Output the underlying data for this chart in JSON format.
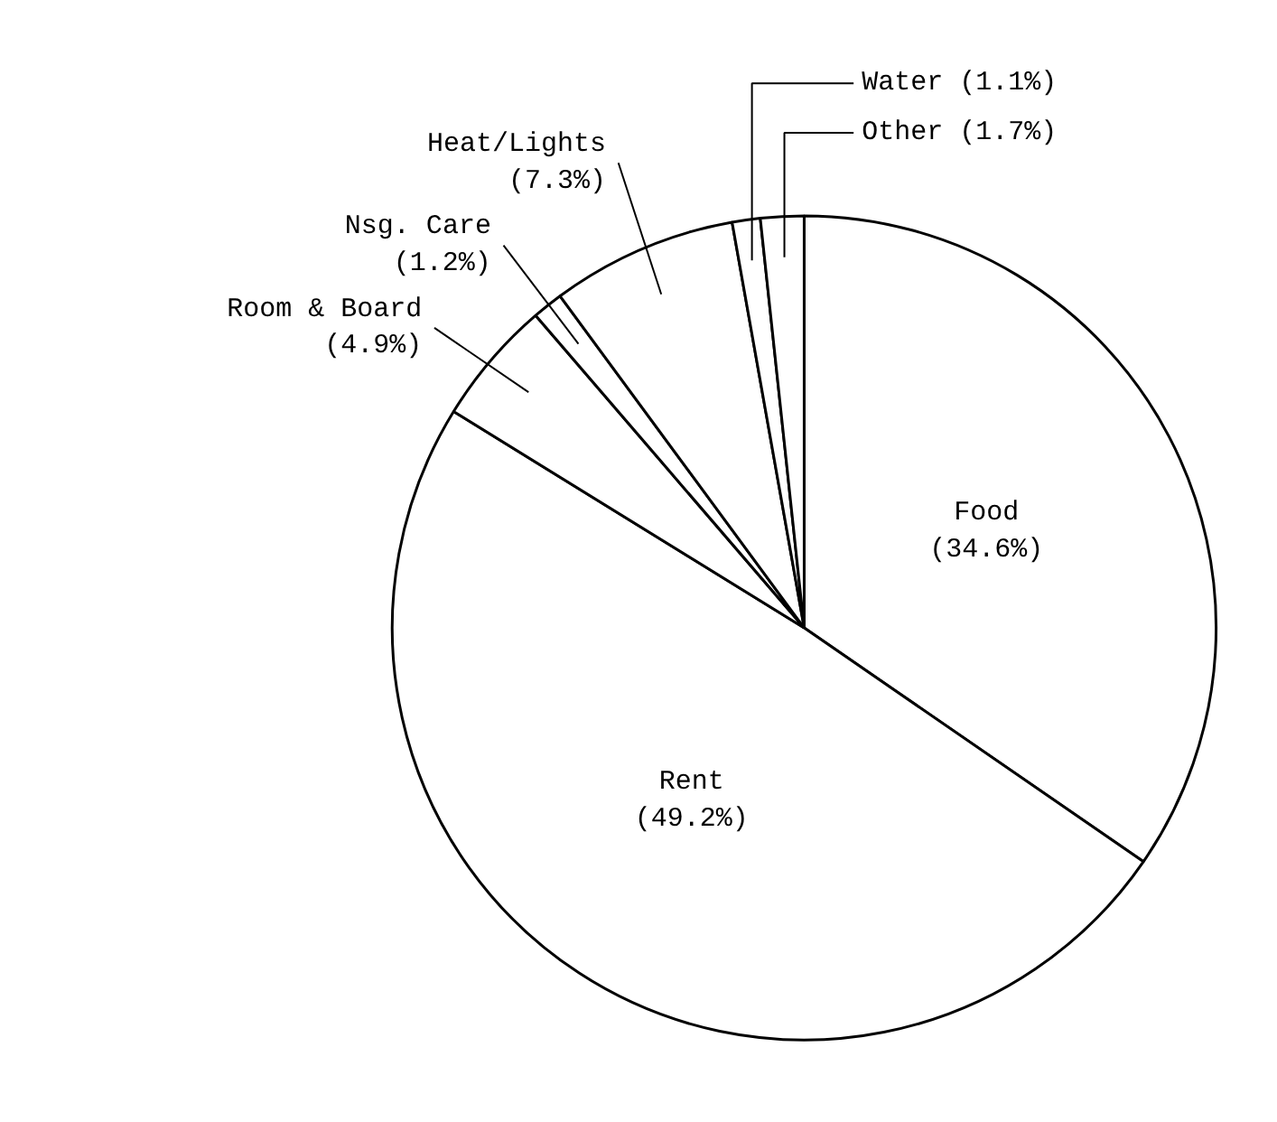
{
  "chart_data": {
    "type": "pie",
    "categories": [
      "Food",
      "Rent",
      "Room & Board",
      "Nsg. Care",
      "Heat/Lights",
      "Water",
      "Other"
    ],
    "values": [
      34.6,
      49.2,
      4.9,
      1.2,
      7.3,
      1.1,
      1.7
    ],
    "colors": [
      "#ffffff",
      "#ffffff",
      "#ffffff",
      "#ffffff",
      "#ffffff",
      "#ffffff",
      "#ffffff"
    ],
    "value_labels": [
      "(34.6%)",
      "(49.2%)",
      "(4.9%)",
      "(1.2%)",
      "(7.3%)",
      "(1.1%)",
      "(1.7%)"
    ]
  }
}
